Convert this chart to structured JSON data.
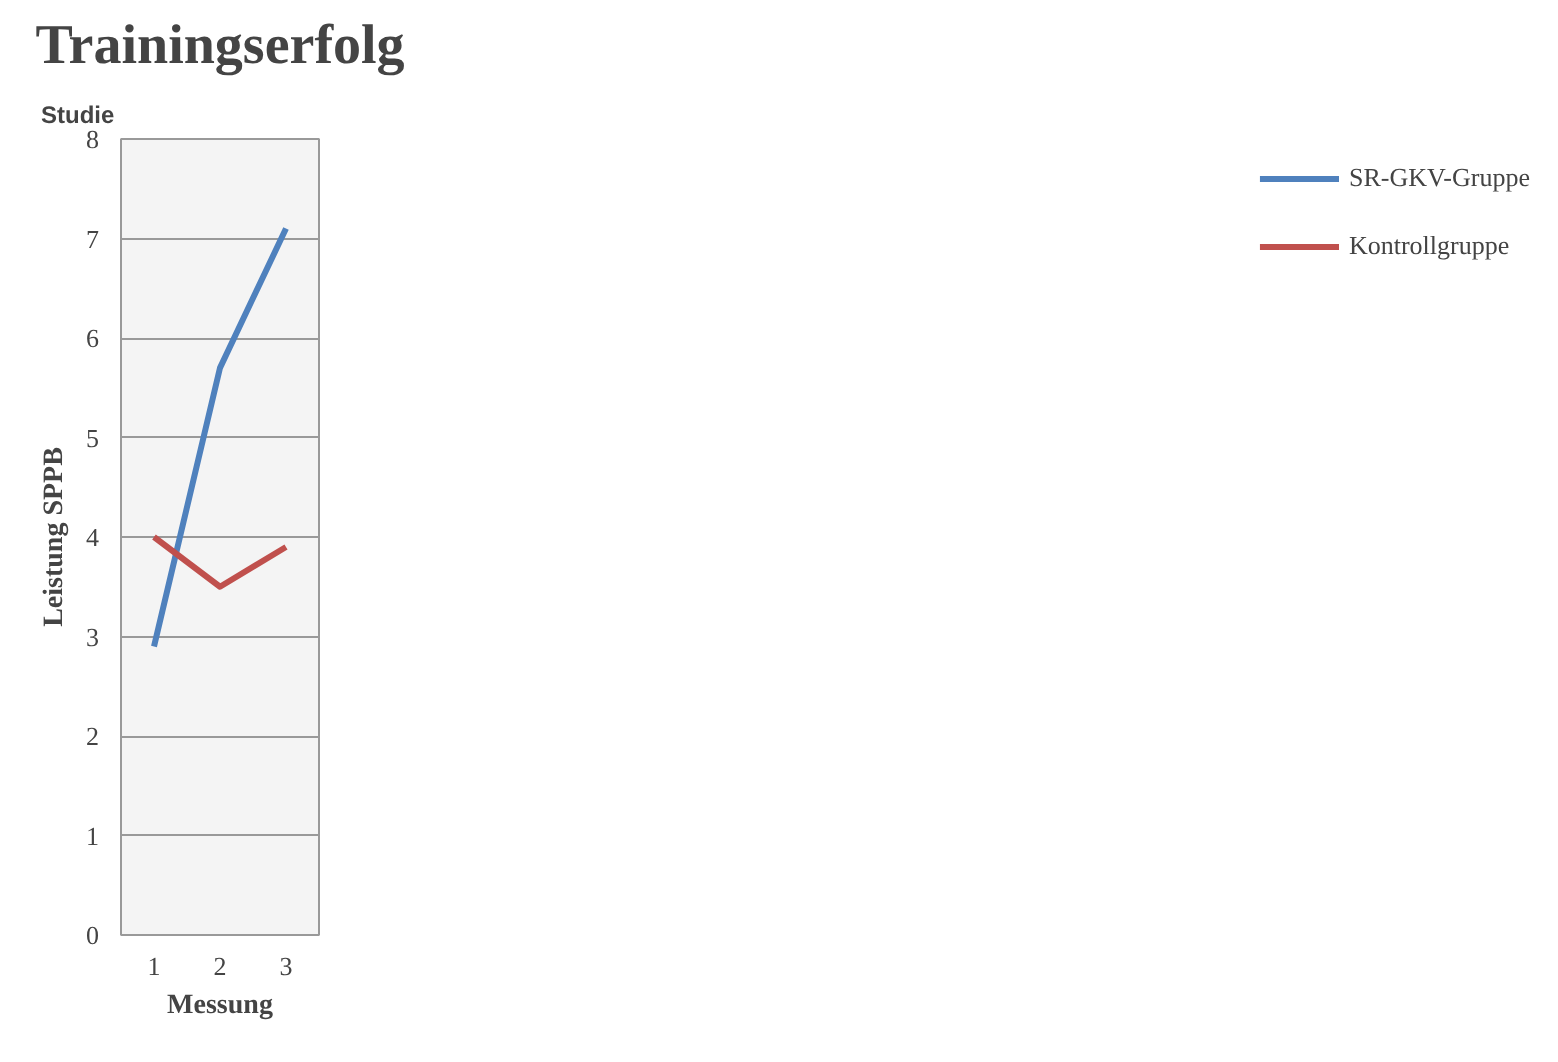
{
  "chart_data": {
    "type": "line",
    "title": "Trainingserfolg",
    "xlabel": "Messung",
    "ylabel": "Leistung SPPB",
    "annotations": [
      "Studie"
    ],
    "categories": [
      "1",
      "2",
      "3"
    ],
    "series": [
      {
        "name": "SR-GKV-Gruppe",
        "color": "#4f81bd",
        "values": [
          2.9,
          5.7,
          7.1
        ]
      },
      {
        "name": "Kontrollgruppe",
        "color": "#c0504d",
        "values": [
          4.0,
          3.5,
          3.9
        ]
      }
    ],
    "ylim": [
      0,
      8
    ],
    "yticks": [
      0,
      1,
      2,
      3,
      4,
      5,
      6,
      7,
      8
    ],
    "grid": "y",
    "legend": "right",
    "marker": "none",
    "line_style": "solid"
  }
}
